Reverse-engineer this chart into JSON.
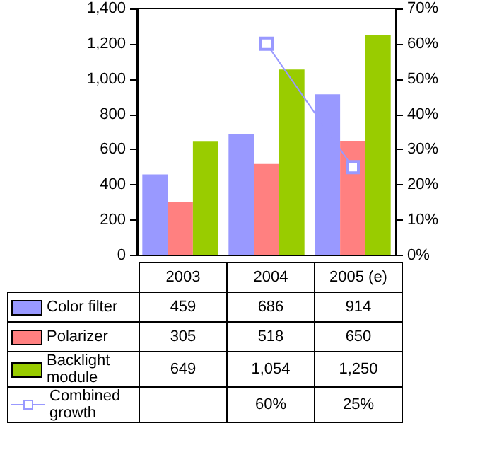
{
  "chart_data": {
    "type": "bar",
    "categories": [
      "2003",
      "2004",
      "2005 (e)"
    ],
    "series": [
      {
        "name": "Color filter",
        "color": "#9999ff",
        "values": [
          459,
          686,
          914
        ],
        "value_labels": [
          "459",
          "686",
          "914"
        ]
      },
      {
        "name": "Polarizer",
        "color": "#ff8080",
        "values": [
          305,
          518,
          650
        ],
        "value_labels": [
          "305",
          "518",
          "650"
        ]
      },
      {
        "name": "Backlight module",
        "color": "#99cc00",
        "values": [
          649,
          1054,
          1250
        ],
        "value_labels": [
          "649",
          "1,054",
          "1,250"
        ]
      },
      {
        "name": "Combined growth",
        "type": "line",
        "axis": "y2",
        "color": "#9999ff",
        "marker": "square",
        "values": [
          null,
          60,
          25
        ],
        "value_labels": [
          null,
          "60%",
          "25%"
        ]
      }
    ],
    "ylim": [
      0,
      1400
    ],
    "yticks": [
      0,
      200,
      400,
      600,
      800,
      {
        "value": 1000,
        "label": "1,000"
      },
      {
        "value": 1200,
        "label": "1,200"
      },
      {
        "value": 1400,
        "label": "1,400"
      }
    ],
    "y2lim": [
      0,
      70
    ],
    "y2ticks": [
      {
        "value": 0,
        "label": "0%"
      },
      {
        "value": 10,
        "label": "10%"
      },
      {
        "value": 20,
        "label": "20%"
      },
      {
        "value": 30,
        "label": "30%"
      },
      {
        "value": 40,
        "label": "40%"
      },
      {
        "value": 50,
        "label": "50%"
      },
      {
        "value": 60,
        "label": "60%"
      },
      {
        "value": 70,
        "label": "70%"
      }
    ],
    "legend": "bottom",
    "grid": false
  }
}
